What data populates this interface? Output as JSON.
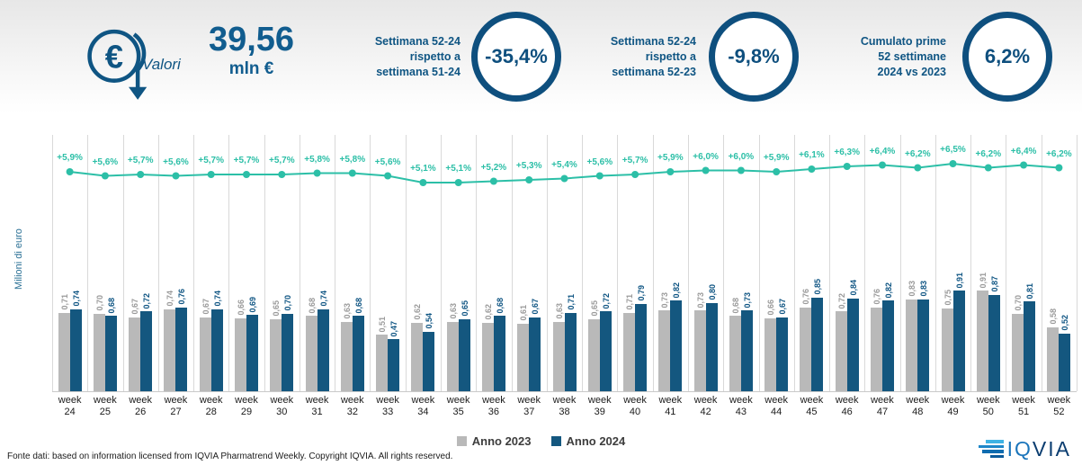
{
  "header": {
    "valori_label": "Valori",
    "total_value": "39,56",
    "total_unit": "mln €",
    "kpis": [
      {
        "label_lines": [
          "Settimana 52-24",
          "rispetto a",
          "settimana 51-24"
        ],
        "value": "-35,4%"
      },
      {
        "label_lines": [
          "Settimana 52-24",
          "rispetto a",
          "settimana 52-23"
        ],
        "value": "-9,8%"
      },
      {
        "label_lines": [
          "Cumulato prime",
          "52 settimane",
          "2024 vs 2023"
        ],
        "value": "6,2%"
      }
    ]
  },
  "chart_data": {
    "type": "bar",
    "title": "",
    "ylabel": "Milioni di euro",
    "xlabel_prefix": "week",
    "weeks": [
      "24",
      "25",
      "26",
      "27",
      "28",
      "29",
      "30",
      "31",
      "32",
      "33",
      "34",
      "35",
      "36",
      "37",
      "38",
      "39",
      "40",
      "41",
      "42",
      "43",
      "44",
      "45",
      "46",
      "47",
      "48",
      "49",
      "50",
      "51",
      "52"
    ],
    "series": [
      {
        "name": "Anno 2023",
        "color": "#b9b9b9",
        "label_color": "#9a9a9a",
        "values": [
          0.71,
          0.7,
          0.67,
          0.74,
          0.67,
          0.66,
          0.65,
          0.68,
          0.63,
          0.51,
          0.62,
          0.63,
          0.62,
          0.61,
          0.63,
          0.65,
          0.71,
          0.73,
          0.73,
          0.68,
          0.66,
          0.76,
          0.72,
          0.76,
          0.83,
          0.75,
          0.91,
          0.7,
          0.58
        ]
      },
      {
        "name": "Anno 2024",
        "color": "#14577f",
        "label_color": "#0f5583",
        "values": [
          0.74,
          0.68,
          0.72,
          0.76,
          0.74,
          0.69,
          0.7,
          0.74,
          0.68,
          0.47,
          0.54,
          0.65,
          0.68,
          0.67,
          0.71,
          0.72,
          0.79,
          0.82,
          0.8,
          0.73,
          0.67,
          0.85,
          0.84,
          0.82,
          0.83,
          0.91,
          0.87,
          0.81,
          0.52
        ]
      }
    ],
    "line": {
      "color": "#2cbfa7",
      "labels": [
        "+5,9%",
        "+5,6%",
        "+5,7%",
        "+5,6%",
        "+5,7%",
        "+5,7%",
        "+5,7%",
        "+5,8%",
        "+5,8%",
        "+5,6%",
        "+5,1%",
        "+5,1%",
        "+5,2%",
        "+5,3%",
        "+5,4%",
        "+5,6%",
        "+5,7%",
        "+5,9%",
        "+6,0%",
        "+6,0%",
        "+5,9%",
        "+6,1%",
        "+6,3%",
        "+6,4%",
        "+6,2%",
        "+6,5%",
        "+6,2%",
        "+6,4%",
        "+6,2%"
      ],
      "values": [
        5.9,
        5.6,
        5.7,
        5.6,
        5.7,
        5.7,
        5.7,
        5.8,
        5.8,
        5.6,
        5.1,
        5.1,
        5.2,
        5.3,
        5.4,
        5.6,
        5.7,
        5.9,
        6.0,
        6.0,
        5.9,
        6.1,
        6.3,
        6.4,
        6.2,
        6.5,
        6.2,
        6.4,
        6.2
      ]
    },
    "legend_position": "bottom",
    "grid": "vertical-only",
    "ylim": [
      0,
      1
    ]
  },
  "legend": [
    {
      "label": "Anno 2023",
      "color": "#b9b9b9"
    },
    {
      "label": "Anno 2024",
      "color": "#14577f"
    }
  ],
  "footer": {
    "source": "Fonte dati: based on information licensed from IQVIA Pharmatrend Weekly. Copyright IQVIA. All rights reserved.",
    "logo_text_iq": "IQ",
    "logo_text_via": "VIA"
  }
}
